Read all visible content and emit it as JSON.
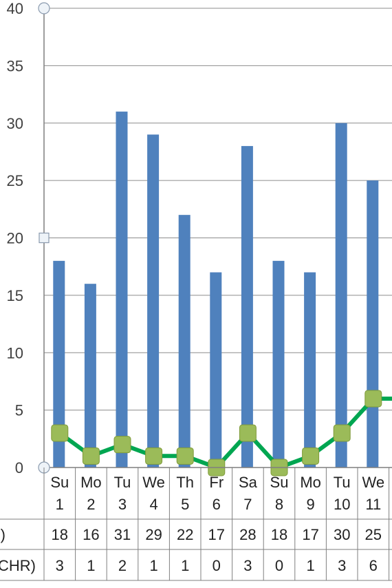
{
  "chart_data": {
    "type": "bar",
    "ylim": [
      0,
      40
    ],
    "y_ticks": [
      0,
      5,
      10,
      15,
      20,
      25,
      30,
      35,
      40
    ],
    "grid": true,
    "categories": [
      {
        "day": "Su",
        "date": "1"
      },
      {
        "day": "Mo",
        "date": "2"
      },
      {
        "day": "Tu",
        "date": "3"
      },
      {
        "day": "We",
        "date": "4"
      },
      {
        "day": "Th",
        "date": "5"
      },
      {
        "day": "Fr",
        "date": "6"
      },
      {
        "day": "Sa",
        "date": "7"
      },
      {
        "day": "Su",
        "date": "8"
      },
      {
        "day": "Mo",
        "date": "9"
      },
      {
        "day": "Tu",
        "date": "10"
      },
      {
        "day": "We",
        "date": "11"
      }
    ],
    "series": [
      {
        "type": "bar",
        "color": "#4f81bd",
        "row_label": "R)",
        "values": [
          18,
          16,
          31,
          29,
          22,
          17,
          28,
          18,
          17,
          30,
          25
        ]
      },
      {
        "type": "line",
        "color": "#00a651",
        "marker_color": "#9bbb59",
        "row_label": "CHR)",
        "values": [
          3,
          1,
          2,
          1,
          1,
          0,
          3,
          0,
          1,
          3,
          6
        ]
      }
    ]
  }
}
